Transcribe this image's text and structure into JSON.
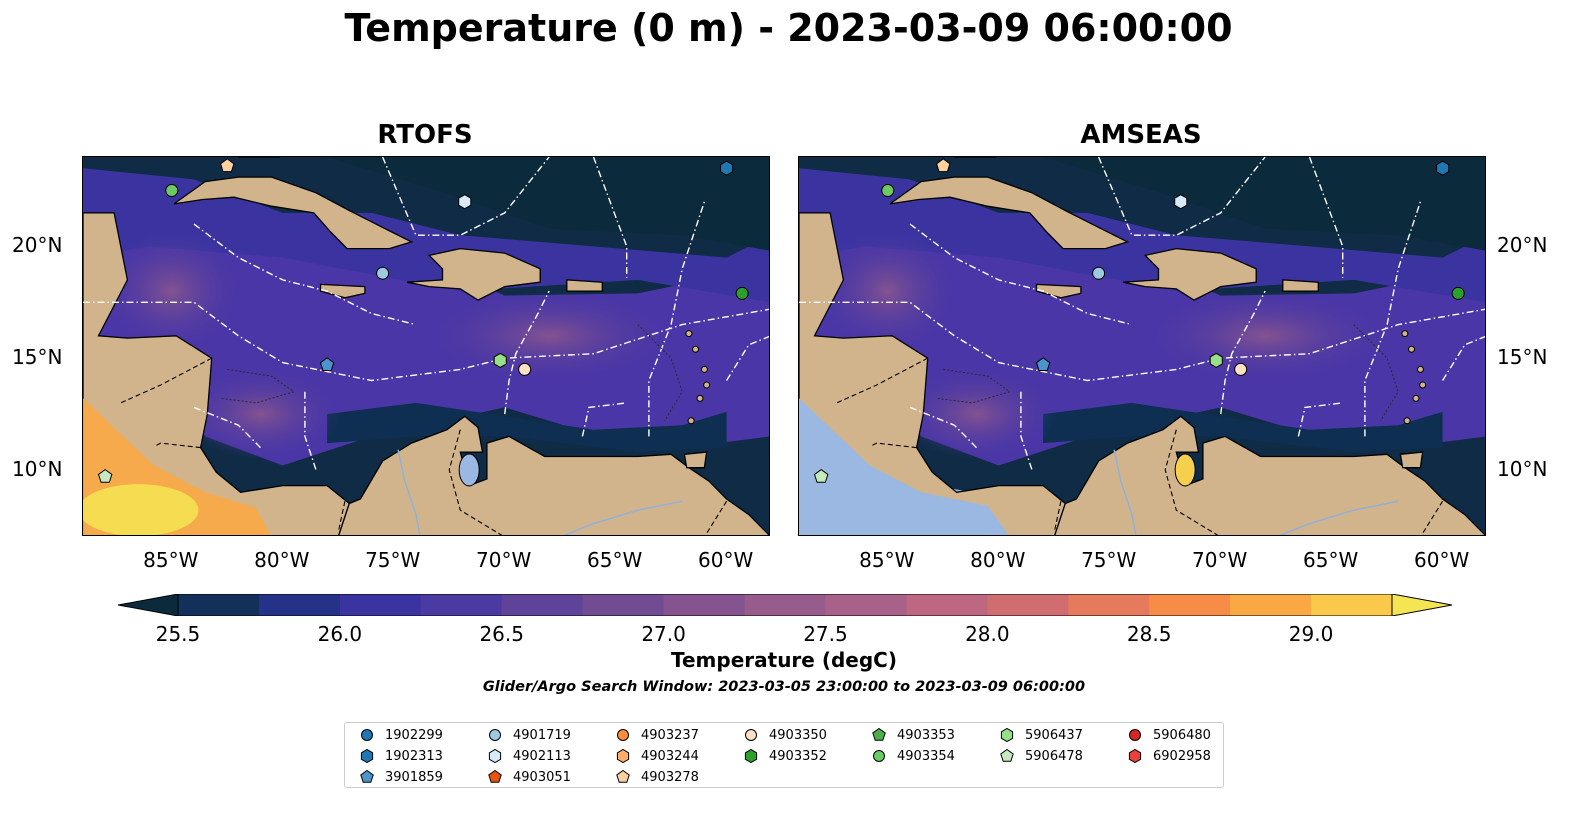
{
  "title": "Temperature (0 m) - 2023-03-09 06:00:00",
  "panels": [
    {
      "title": "RTOFS",
      "variant": "rtofs"
    },
    {
      "title": "AMSEAS",
      "variant": "amseas"
    }
  ],
  "axes": {
    "x_ticks": [
      "85°W",
      "80°W",
      "75°W",
      "70°W",
      "65°W",
      "60°W"
    ],
    "y_ticks": [
      "20°N",
      "15°N",
      "10°N"
    ]
  },
  "colorbar": {
    "label": "Temperature (degC)",
    "ticks": [
      "25.5",
      "26.0",
      "26.5",
      "27.0",
      "27.5",
      "28.0",
      "28.5",
      "29.0"
    ],
    "colors": [
      "#0b2a3c",
      "#13305a",
      "#243287",
      "#3b34a0",
      "#4c3aa3",
      "#5f4399",
      "#724c92",
      "#845390",
      "#975b8c",
      "#a86188",
      "#bd6780",
      "#d06d71",
      "#e57a5c",
      "#f68c47",
      "#f9a844",
      "#fac84a",
      "#f6e552"
    ]
  },
  "search_window": "Glider/Argo Search Window: 2023-03-05 23:00:00 to 2023-03-09 06:00:00",
  "legend": {
    "columns": [
      [
        {
          "id": "1902299",
          "shape": "circle",
          "color": "#1f77b4"
        },
        {
          "id": "1902313",
          "shape": "hexagon",
          "color": "#1f77b4"
        },
        {
          "id": "3901859",
          "shape": "pentagon",
          "color": "#4c94cc"
        }
      ],
      [
        {
          "id": "4901719",
          "shape": "circle",
          "color": "#9ecae1"
        },
        {
          "id": "4902113",
          "shape": "hexagon",
          "color": "#d6eaf8"
        }
      ],
      [
        {
          "id": "4903237",
          "shape": "circle",
          "color": "#fd8d3c"
        },
        {
          "id": "4903244",
          "shape": "hexagon",
          "color": "#fdae6b"
        },
        {
          "id": "4903278",
          "shape": "pentagon",
          "color": "#fdd0a2"
        }
      ],
      [
        {
          "id": "4903350",
          "shape": "circle",
          "color": "#fde0c5"
        },
        {
          "id": "4903352",
          "shape": "hexagon",
          "color": "#2ca02c"
        }
      ],
      [
        {
          "id": "4903353",
          "shape": "pentagon",
          "color": "#4daf4a"
        },
        {
          "id": "4903354",
          "shape": "circle",
          "color": "#6dc964"
        }
      ],
      [
        {
          "id": "5906437",
          "shape": "hexagon",
          "color": "#98df8a"
        },
        {
          "id": "5906478",
          "shape": "pentagon",
          "color": "#c7e9c0"
        }
      ],
      [
        {
          "id": "5906480",
          "shape": "circle",
          "color": "#d62728"
        },
        {
          "id": "6902958",
          "shape": "hexagon",
          "color": "#e8413e"
        }
      ]
    ],
    "extra_item": {
      "id": "4903051",
      "shape": "pentagon",
      "color": "#e6550d"
    }
  },
  "markers": [
    {
      "lon": -85.0,
      "lat": 22.5,
      "shape": "circle",
      "color": "#6dc964"
    },
    {
      "lon": -82.5,
      "lat": 23.6,
      "shape": "pentagon",
      "color": "#fdd0a2"
    },
    {
      "lon": -60.0,
      "lat": 23.5,
      "shape": "hexagon",
      "color": "#1f77b4"
    },
    {
      "lon": -71.8,
      "lat": 22.0,
      "shape": "hexagon",
      "color": "#d6eaf8"
    },
    {
      "lon": -75.5,
      "lat": 18.8,
      "shape": "circle",
      "color": "#9ecae1"
    },
    {
      "lon": -59.3,
      "lat": 17.9,
      "shape": "circle",
      "color": "#2ca02c"
    },
    {
      "lon": -78.0,
      "lat": 14.7,
      "shape": "pentagon",
      "color": "#4c94cc"
    },
    {
      "lon": -70.2,
      "lat": 14.9,
      "shape": "hexagon",
      "color": "#98df8a"
    },
    {
      "lon": -69.1,
      "lat": 14.5,
      "shape": "circle",
      "color": "#fde0c5"
    },
    {
      "lon": -88.0,
      "lat": 9.7,
      "shape": "pentagon",
      "color": "#c7e9c0"
    }
  ],
  "map_extent": {
    "lon_min": -89.0,
    "lon_max": -58.0,
    "lat_min": 7.0,
    "lat_max": 24.0
  }
}
